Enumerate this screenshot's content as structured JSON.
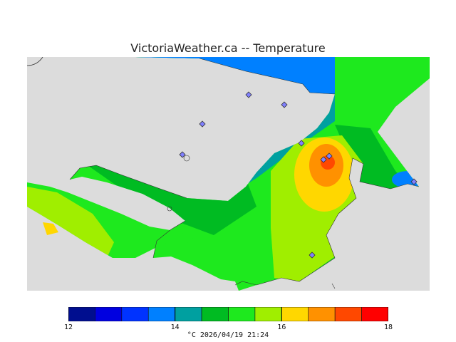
{
  "title": "VictoriaWeather.ca  -- Temperature",
  "units_timestamp": "°C  2026/04/19 21:24",
  "colorbar": {
    "min": 12,
    "max": 18,
    "labels": [
      "12",
      "14",
      "16",
      "18"
    ],
    "label_values": [
      12,
      14,
      16,
      18
    ],
    "bands": [
      {
        "from": 12.0,
        "to": 12.5,
        "color": "#000e8f"
      },
      {
        "from": 12.5,
        "to": 13.0,
        "color": "#0000e0"
      },
      {
        "from": 13.0,
        "to": 13.5,
        "color": "#0033ff"
      },
      {
        "from": 13.5,
        "to": 14.0,
        "color": "#0080ff"
      },
      {
        "from": 14.0,
        "to": 14.5,
        "color": "#00a0a0"
      },
      {
        "from": 14.5,
        "to": 15.0,
        "color": "#00bb22"
      },
      {
        "from": 15.0,
        "to": 15.5,
        "color": "#1ee91e"
      },
      {
        "from": 15.5,
        "to": 16.0,
        "color": "#a0ee00"
      },
      {
        "from": 16.0,
        "to": 16.5,
        "color": "#ffd700"
      },
      {
        "from": 16.5,
        "to": 17.0,
        "color": "#ff9100"
      },
      {
        "from": 17.0,
        "to": 17.5,
        "color": "#ff4800"
      },
      {
        "from": 17.5,
        "to": 18.0,
        "color": "#ff0000"
      }
    ]
  },
  "map": {
    "background_color": "#dcdcdc",
    "station_count": 9
  }
}
